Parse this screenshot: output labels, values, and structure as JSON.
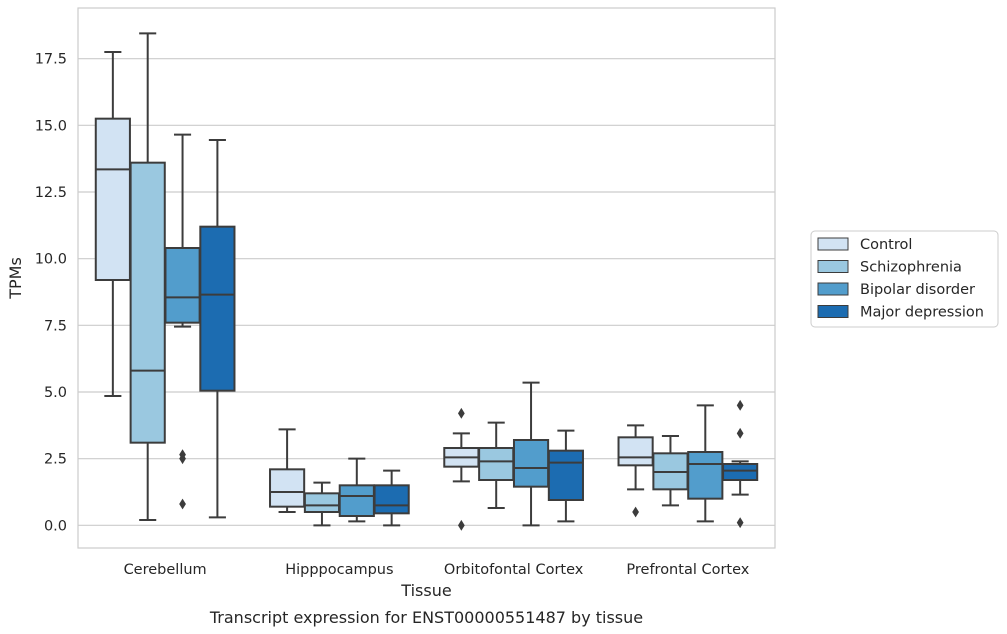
{
  "chart_data": {
    "type": "box",
    "xlabel": "Tissue",
    "ylabel": "TPMs",
    "caption": "Transcript expression for ENST00000551487 by tissue",
    "ylim": [
      -0.85,
      19.4
    ],
    "yticks": [
      "0.0",
      "2.5",
      "5.0",
      "7.5",
      "10.0",
      "12.5",
      "15.0",
      "17.5"
    ],
    "grid": "horizontal",
    "legend_position": "right",
    "categories": [
      "Cerebellum",
      "Hipppocampus",
      "Orbitofontal Cortex",
      "Prefrontal Cortex"
    ],
    "series": [
      {
        "name": "Control",
        "color": "#d2e3f3",
        "boxes": [
          {
            "min": 4.85,
            "q1": 9.2,
            "median": 13.35,
            "q3": 15.25,
            "max": 17.75,
            "outliers": []
          },
          {
            "min": 0.5,
            "q1": 0.7,
            "median": 1.25,
            "q3": 2.1,
            "max": 3.6,
            "outliers": []
          },
          {
            "min": 1.65,
            "q1": 2.2,
            "median": 2.55,
            "q3": 2.9,
            "max": 3.45,
            "outliers": [
              4.2,
              0.0
            ]
          },
          {
            "min": 1.35,
            "q1": 2.25,
            "median": 2.55,
            "q3": 3.3,
            "max": 3.75,
            "outliers": [
              0.5
            ]
          }
        ]
      },
      {
        "name": "Schizophrenia",
        "color": "#9ac8e0",
        "boxes": [
          {
            "min": 0.2,
            "q1": 3.1,
            "median": 5.8,
            "q3": 13.6,
            "max": 18.45,
            "outliers": []
          },
          {
            "min": 0.0,
            "q1": 0.5,
            "median": 0.75,
            "q3": 1.2,
            "max": 1.6,
            "outliers": []
          },
          {
            "min": 0.65,
            "q1": 1.7,
            "median": 2.4,
            "q3": 2.9,
            "max": 3.85,
            "outliers": []
          },
          {
            "min": 0.75,
            "q1": 1.35,
            "median": 2.0,
            "q3": 2.7,
            "max": 3.35,
            "outliers": []
          }
        ]
      },
      {
        "name": "Bipolar disorder",
        "color": "#529dcc",
        "boxes": [
          {
            "min": 7.45,
            "q1": 7.6,
            "median": 8.55,
            "q3": 10.4,
            "max": 14.65,
            "outliers": [
              2.65,
              2.5,
              0.8
            ]
          },
          {
            "min": 0.15,
            "q1": 0.35,
            "median": 1.1,
            "q3": 1.5,
            "max": 2.5,
            "outliers": []
          },
          {
            "min": 0.0,
            "q1": 1.45,
            "median": 2.15,
            "q3": 3.2,
            "max": 5.35,
            "outliers": []
          },
          {
            "min": 0.15,
            "q1": 1.0,
            "median": 2.3,
            "q3": 2.75,
            "max": 4.5,
            "outliers": []
          }
        ]
      },
      {
        "name": "Major depression",
        "color": "#1c6cb1",
        "boxes": [
          {
            "min": 0.3,
            "q1": 5.05,
            "median": 8.65,
            "q3": 11.2,
            "max": 14.45,
            "outliers": []
          },
          {
            "min": 0.0,
            "q1": 0.45,
            "median": 0.75,
            "q3": 1.5,
            "max": 2.05,
            "outliers": []
          },
          {
            "min": 0.15,
            "q1": 0.95,
            "median": 2.35,
            "q3": 2.8,
            "max": 3.55,
            "outliers": []
          },
          {
            "min": 1.15,
            "q1": 1.7,
            "median": 2.05,
            "q3": 2.3,
            "max": 2.4,
            "outliers": [
              4.5,
              3.45,
              0.1
            ]
          }
        ]
      }
    ]
  }
}
